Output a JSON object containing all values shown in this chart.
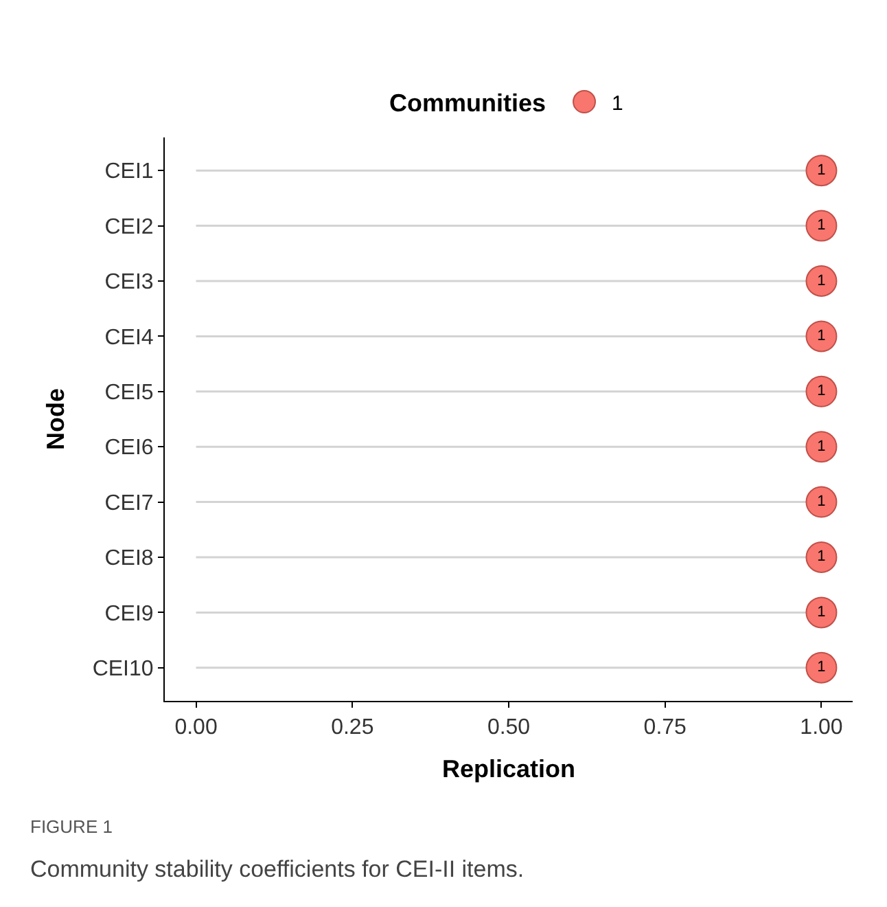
{
  "chart_data": {
    "type": "lollipop",
    "orientation": "horizontal",
    "categories": [
      "CEI1",
      "CEI2",
      "CEI3",
      "CEI4",
      "CEI5",
      "CEI6",
      "CEI7",
      "CEI8",
      "CEI9",
      "CEI10"
    ],
    "series": [
      {
        "name": "1",
        "color": "#f8766d",
        "values": [
          1.0,
          1.0,
          1.0,
          1.0,
          1.0,
          1.0,
          1.0,
          1.0,
          1.0,
          1.0
        ],
        "value_labels": [
          "1",
          "1",
          "1",
          "1",
          "1",
          "1",
          "1",
          "1",
          "1",
          "1"
        ]
      }
    ],
    "xlabel": "Replication",
    "ylabel": "Node",
    "legend_title": "Communities",
    "legend": "top",
    "xlim": [
      -0.05,
      1.05
    ],
    "xticks": [
      {
        "value": 0,
        "label": "0.00"
      },
      {
        "value": 0.25,
        "label": "0.25"
      },
      {
        "value": 0.5,
        "label": "0.50"
      },
      {
        "value": 0.75,
        "label": "0.75"
      },
      {
        "value": 1,
        "label": "1.00"
      }
    ],
    "marker": "circle",
    "annotations": [
      "FIGURE 1",
      "Community stability coefficients for CEI-II items."
    ]
  }
}
